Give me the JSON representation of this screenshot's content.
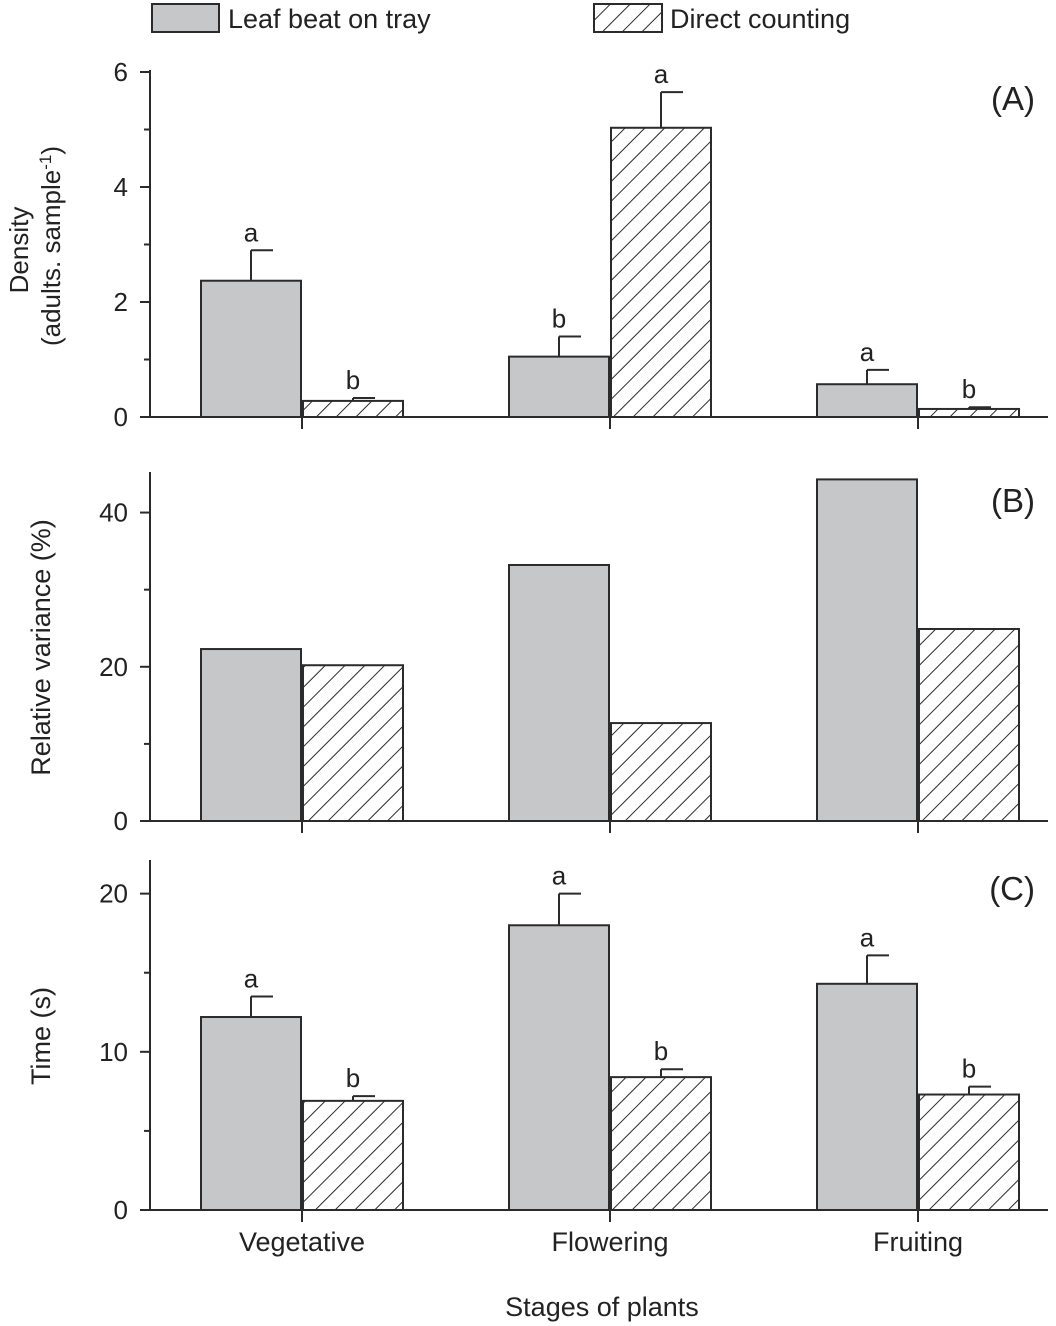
{
  "legend": {
    "items": [
      {
        "label": "Leaf beat on tray",
        "style": "solid"
      },
      {
        "label": "Direct counting",
        "style": "hatched"
      }
    ]
  },
  "colors": {
    "solid_fill": "#c6c7c9",
    "line": "#2b2b2b",
    "hatch": "#2b2b2b"
  },
  "xlabel": "Stages of plants",
  "chart_data": [
    {
      "type": "bar",
      "panel": "(A)",
      "categories": [
        "Vegetative",
        "Flowering",
        "Fruiting"
      ],
      "ylabel_lines": [
        "Density",
        "(adults. sample",
        "-1",
        ")"
      ],
      "ylim": [
        0,
        6
      ],
      "yticks": [
        0,
        2,
        4,
        6
      ],
      "series": [
        {
          "name": "Leaf beat on tray",
          "values": [
            2.37,
            1.05,
            0.57
          ],
          "errors": [
            0.53,
            0.35,
            0.25
          ],
          "letters": [
            "a",
            "b",
            "a"
          ]
        },
        {
          "name": "Direct counting",
          "values": [
            0.28,
            5.03,
            0.14
          ],
          "errors": [
            0.05,
            0.62,
            0.03
          ],
          "letters": [
            "b",
            "a",
            "b"
          ]
        }
      ]
    },
    {
      "type": "bar",
      "panel": "(B)",
      "categories": [
        "Vegetative",
        "Flowering",
        "Fruiting"
      ],
      "ylabel_lines": [
        "Relative variance (%)"
      ],
      "ylim": [
        0,
        45
      ],
      "yticks": [
        0,
        20,
        40
      ],
      "series": [
        {
          "name": "Leaf beat on tray",
          "values": [
            22.3,
            33.2,
            44.3
          ]
        },
        {
          "name": "Direct counting",
          "values": [
            20.2,
            12.7,
            24.9
          ]
        }
      ]
    },
    {
      "type": "bar",
      "panel": "(C)",
      "categories": [
        "Vegetative",
        "Flowering",
        "Fruiting"
      ],
      "ylabel_lines": [
        "Time (s)"
      ],
      "ylim": [
        0,
        22
      ],
      "yticks": [
        0,
        10,
        20
      ],
      "series": [
        {
          "name": "Leaf beat on tray",
          "values": [
            12.2,
            18.0,
            14.3
          ],
          "errors": [
            1.3,
            2.0,
            1.8
          ],
          "letters": [
            "a",
            "a",
            "a"
          ]
        },
        {
          "name": "Direct counting",
          "values": [
            6.9,
            8.4,
            7.3
          ],
          "errors": [
            0.3,
            0.5,
            0.5
          ],
          "letters": [
            "b",
            "b",
            "b"
          ]
        }
      ]
    }
  ]
}
